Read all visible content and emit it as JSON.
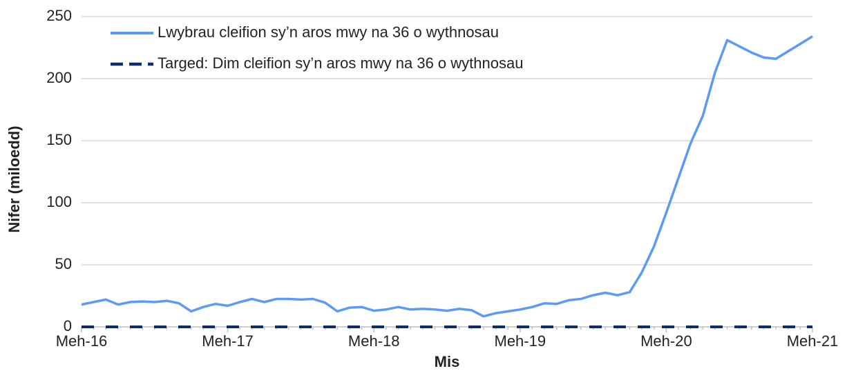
{
  "chart_data": {
    "type": "line",
    "ylabel": "Nifer (miloedd)",
    "xlabel": "Mis",
    "categories": [
      "Meh-16",
      null,
      null,
      null,
      null,
      null,
      null,
      null,
      null,
      null,
      null,
      null,
      "Meh-17",
      null,
      null,
      null,
      null,
      null,
      null,
      null,
      null,
      null,
      null,
      null,
      "Meh-18",
      null,
      null,
      null,
      null,
      null,
      null,
      null,
      null,
      null,
      null,
      null,
      "Meh-19",
      null,
      null,
      null,
      null,
      null,
      null,
      null,
      null,
      null,
      null,
      null,
      "Meh-20",
      null,
      null,
      null,
      null,
      null,
      null,
      null,
      null,
      null,
      null,
      null,
      "Meh-21"
    ],
    "series": [
      {
        "name": "Lwybrau cleifion sy’n aros mwy na 36 o wythnosau",
        "color": "#5b9bf5",
        "dash": false,
        "values": [
          18,
          20,
          22,
          18,
          20,
          20.5,
          20,
          21,
          19,
          12.5,
          16,
          18.5,
          17,
          20,
          22.5,
          20,
          22.5,
          22.5,
          22,
          22.5,
          19.5,
          12.5,
          15.5,
          16,
          13,
          14,
          16,
          14,
          14.5,
          14,
          13,
          14.5,
          13.5,
          8.5,
          11,
          12.5,
          14,
          16,
          19,
          18.5,
          21.5,
          22.5,
          25.5,
          27.5,
          25.5,
          28,
          44,
          65,
          92,
          120,
          148,
          170,
          205,
          231,
          226,
          221,
          217,
          216,
          222,
          228,
          234
        ]
      },
      {
        "name": "Targed: Dim cleifion sy’n aros mwy na 36 o wythnosau",
        "color": "#0e2d6b",
        "dash": true,
        "values": [
          0,
          0,
          0,
          0,
          0,
          0,
          0,
          0,
          0,
          0,
          0,
          0,
          0,
          0,
          0,
          0,
          0,
          0,
          0,
          0,
          0,
          0,
          0,
          0,
          0,
          0,
          0,
          0,
          0,
          0,
          0,
          0,
          0,
          0,
          0,
          0,
          0,
          0,
          0,
          0,
          0,
          0,
          0,
          0,
          0,
          0,
          0,
          0,
          0,
          0,
          0,
          0,
          0,
          0,
          0,
          0,
          0,
          0,
          0,
          0,
          0
        ]
      }
    ],
    "ylim": [
      0,
      250
    ],
    "yticks": [
      0,
      50,
      100,
      150,
      200,
      250
    ],
    "grid": true,
    "legend": "upper left"
  }
}
